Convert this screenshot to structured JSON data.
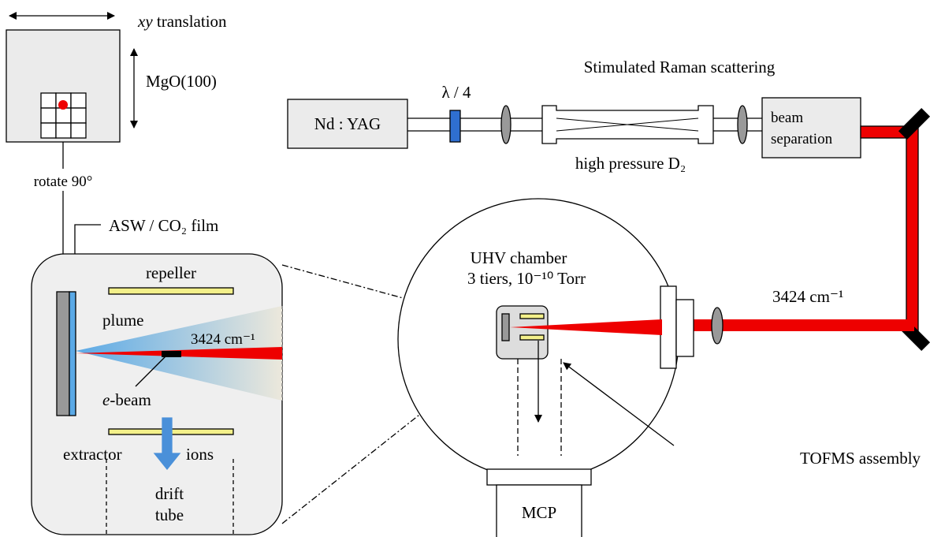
{
  "labels": {
    "xy_translation": {
      "italic": "xy",
      "text": " translation"
    },
    "mgo": "MgO(100)",
    "rotate": "rotate 90°",
    "asw_film": "ASW / CO₂ film",
    "raman": "Stimulated Raman scattering",
    "ndyag": "Nd : YAG",
    "waveplate": "λ / 4",
    "beam_separation": [
      "beam",
      "separation"
    ],
    "high_pressure": "high pressure D₂",
    "uhv": [
      "UHV chamber",
      "3 tiers, 10⁻¹⁰ Torr"
    ],
    "wavenumber": "3424 cm⁻¹",
    "tofms": "TOFMS assembly",
    "mcp": "MCP",
    "inset": {
      "repeller": "repeller",
      "plume": "plume",
      "wavenumber": "3424 cm⁻¹",
      "ebeam": {
        "italic": "e",
        "text": "-beam"
      },
      "extractor": "extractor",
      "ions": "ions",
      "drift_tube": [
        "drift",
        "tube"
      ]
    }
  }
}
